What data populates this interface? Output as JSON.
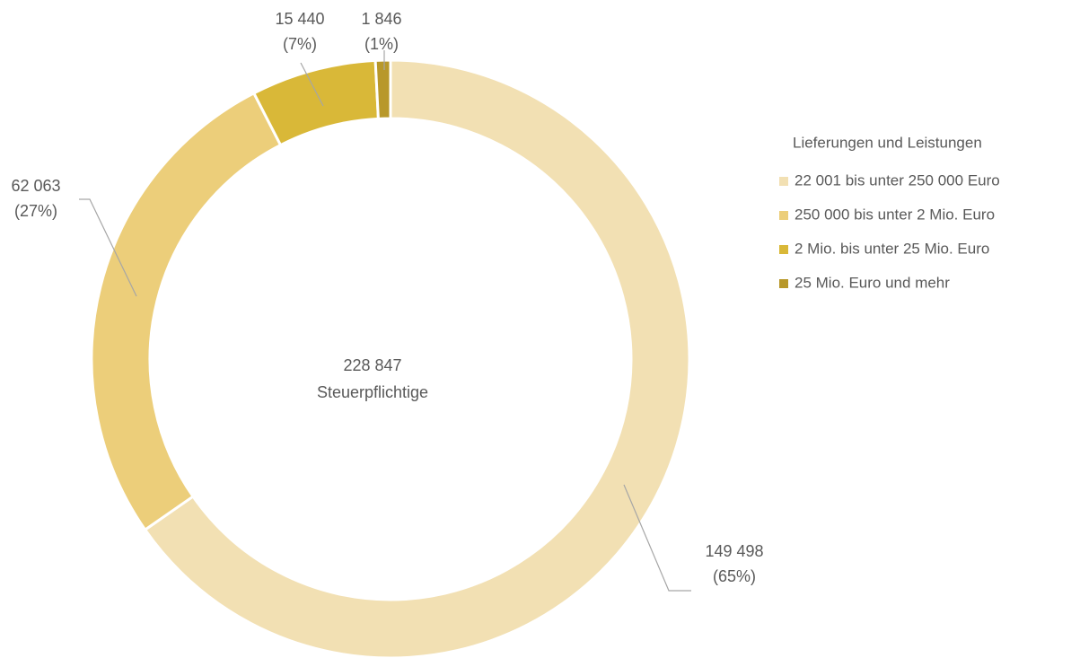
{
  "chart_data": {
    "type": "donut",
    "center_value": "228 847",
    "center_text": "Steuerpflichtige",
    "legend_title": "Lieferungen und Leistungen",
    "categories": [
      "22 001 bis unter 250 000  Euro",
      "250 000 bis unter 2 Mio. Euro",
      "2 Mio. bis unter 25 Mio. Euro",
      "25 Mio. Euro und mehr"
    ],
    "values": [
      149498,
      62063,
      15440,
      1846
    ],
    "value_labels": [
      "149 498",
      "62 063",
      "15 440",
      "1 846"
    ],
    "percent_labels": [
      "(65%)",
      "(27%)",
      "(7%)",
      "(1%)"
    ],
    "colors": [
      "#f2e0b3",
      "#ecce7a",
      "#d9b838",
      "#b8982a"
    ],
    "legend": "right"
  }
}
